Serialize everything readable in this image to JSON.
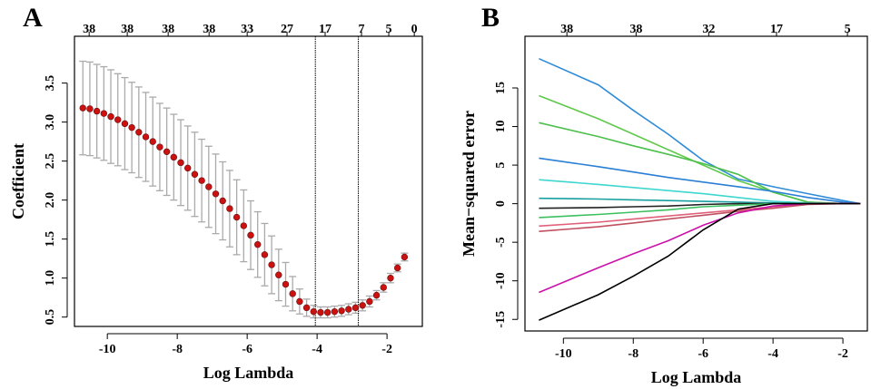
{
  "chart_data": [
    {
      "type": "errorbar",
      "panel_label": "A",
      "xlabel": "Log Lambda",
      "ylabel": "Coefficient",
      "x": [
        -10.7,
        -10.5,
        -10.3,
        -10.1,
        -9.9,
        -9.7,
        -9.5,
        -9.3,
        -9.1,
        -8.9,
        -8.7,
        -8.5,
        -8.3,
        -8.1,
        -7.9,
        -7.7,
        -7.5,
        -7.3,
        -7.1,
        -6.9,
        -6.7,
        -6.5,
        -6.3,
        -6.1,
        -5.9,
        -5.7,
        -5.5,
        -5.3,
        -5.1,
        -4.9,
        -4.7,
        -4.5,
        -4.3,
        -4.1,
        -3.9,
        -3.7,
        -3.5,
        -3.3,
        -3.1,
        -2.9,
        -2.7,
        -2.5,
        -2.3,
        -2.1,
        -1.9,
        -1.7,
        -1.5
      ],
      "values": [
        3.18,
        3.17,
        3.14,
        3.11,
        3.07,
        3.03,
        2.98,
        2.93,
        2.87,
        2.81,
        2.75,
        2.68,
        2.62,
        2.55,
        2.48,
        2.41,
        2.33,
        2.25,
        2.17,
        2.08,
        1.99,
        1.89,
        1.78,
        1.67,
        1.55,
        1.43,
        1.3,
        1.17,
        1.04,
        0.92,
        0.8,
        0.7,
        0.62,
        0.57,
        0.56,
        0.56,
        0.57,
        0.58,
        0.6,
        0.62,
        0.65,
        0.7,
        0.78,
        0.88,
        1.0,
        1.13,
        1.27
      ],
      "errors": [
        0.6,
        0.6,
        0.6,
        0.6,
        0.6,
        0.59,
        0.59,
        0.58,
        0.58,
        0.57,
        0.57,
        0.56,
        0.56,
        0.55,
        0.55,
        0.54,
        0.54,
        0.53,
        0.52,
        0.51,
        0.5,
        0.49,
        0.48,
        0.46,
        0.44,
        0.42,
        0.4,
        0.37,
        0.33,
        0.28,
        0.22,
        0.16,
        0.11,
        0.08,
        0.07,
        0.07,
        0.07,
        0.07,
        0.07,
        0.07,
        0.07,
        0.07,
        0.06,
        0.06,
        0.06,
        0.05,
        0.05
      ],
      "color": "#cc1111",
      "error_color": "#aaaaaa",
      "vlines": [
        -4.05,
        -2.82
      ],
      "xlim": [
        -10.94,
        -0.99
      ],
      "ylim": [
        0.38,
        4.1
      ],
      "xticks": [
        -10,
        -8,
        -6,
        -4,
        -2
      ],
      "yticks": [
        {
          "value": 0.5,
          "label": "0.5"
        },
        {
          "value": 1,
          "label": "1.0"
        },
        {
          "value": 1.5,
          "label": "1.5"
        },
        {
          "value": 2,
          "label": "2.0"
        },
        {
          "value": 2.5,
          "label": "2.5"
        },
        {
          "value": 3,
          "label": "3.0"
        },
        {
          "value": 3.5,
          "label": "3.5"
        }
      ],
      "x2ticks": [
        {
          "value": -10.52,
          "label": "38"
        },
        {
          "value": -9.43,
          "label": "38"
        },
        {
          "value": -8.26,
          "label": "38"
        },
        {
          "value": -7.09,
          "label": "38"
        },
        {
          "value": -6.0,
          "label": "33"
        },
        {
          "value": -4.86,
          "label": "27"
        },
        {
          "value": -3.77,
          "label": "17"
        },
        {
          "value": -2.73,
          "label": "7"
        },
        {
          "value": -1.95,
          "label": "5"
        },
        {
          "value": -1.22,
          "label": "0"
        }
      ]
    },
    {
      "type": "line",
      "panel_label": "B",
      "xlabel": "Log Lambda",
      "ylabel": "Mean−squared error",
      "x": [
        -10.7,
        -9,
        -8,
        -7,
        -6,
        -5,
        -4,
        -3,
        -2,
        -1.5
      ],
      "series": [
        {
          "color": "#2e8bd8",
          "values": [
            18.8,
            15.4,
            12.1,
            9.0,
            5.6,
            3.2,
            2.2,
            1.3,
            0.4,
            0
          ]
        },
        {
          "color": "#5fc94a",
          "values": [
            14,
            11,
            9,
            7,
            5,
            3,
            1.5,
            0.2,
            0,
            0
          ]
        },
        {
          "color": "#4cbf4c",
          "values": [
            10.5,
            8.7,
            7.5,
            6.4,
            5.2,
            3.8,
            1.5,
            0.2,
            0,
            0
          ]
        },
        {
          "color": "#2a7fd4",
          "values": [
            5.9,
            4.8,
            4.1,
            3.4,
            2.8,
            2.2,
            1.6,
            0.8,
            0.2,
            0
          ]
        },
        {
          "color": "#3fd6d0",
          "values": [
            3.1,
            2.5,
            2.1,
            1.7,
            1.3,
            0.8,
            0.3,
            0.1,
            0,
            0
          ]
        },
        {
          "color": "#1a9fa0",
          "values": [
            0.7,
            0.6,
            0.5,
            0.4,
            0.3,
            0.2,
            0.1,
            0,
            0,
            0
          ]
        },
        {
          "color": "#222222",
          "values": [
            -0.6,
            -0.5,
            -0.4,
            -0.3,
            -0.1,
            0,
            0,
            0,
            0,
            0
          ]
        },
        {
          "color": "#3cc060",
          "values": [
            -1.8,
            -1.4,
            -1.1,
            -0.8,
            -0.4,
            -0.2,
            0,
            0,
            0,
            0
          ]
        },
        {
          "color": "#e0607a",
          "values": [
            -2.9,
            -2.4,
            -2.0,
            -1.6,
            -1.2,
            -0.8,
            -0.4,
            0,
            0,
            0
          ]
        },
        {
          "color": "#c05060",
          "values": [
            -3.6,
            -3.0,
            -2.5,
            -2.0,
            -1.5,
            -1.0,
            -0.6,
            -0.1,
            0,
            0
          ]
        },
        {
          "color": "#cc11aa",
          "values": [
            -11.5,
            -8.3,
            -6.5,
            -4.8,
            -2.8,
            -1.2,
            -0.3,
            0,
            0,
            0
          ]
        },
        {
          "color": "#000000",
          "values": [
            -15.1,
            -11.8,
            -9.4,
            -6.8,
            -3.4,
            -0.7,
            0,
            0,
            0,
            0
          ]
        }
      ],
      "xlim": [
        -11.1,
        -1.3
      ],
      "ylim": [
        -16.5,
        21.7
      ],
      "xticks": [
        -10,
        -8,
        -6,
        -4,
        -2
      ],
      "yticks": [
        -15,
        -10,
        -5,
        0,
        5,
        10,
        15
      ],
      "x2ticks": [
        {
          "value": -9.9,
          "label": "38"
        },
        {
          "value": -7.92,
          "label": "38"
        },
        {
          "value": -5.84,
          "label": "32"
        },
        {
          "value": -3.9,
          "label": "17"
        },
        {
          "value": -1.87,
          "label": "5"
        }
      ]
    }
  ]
}
